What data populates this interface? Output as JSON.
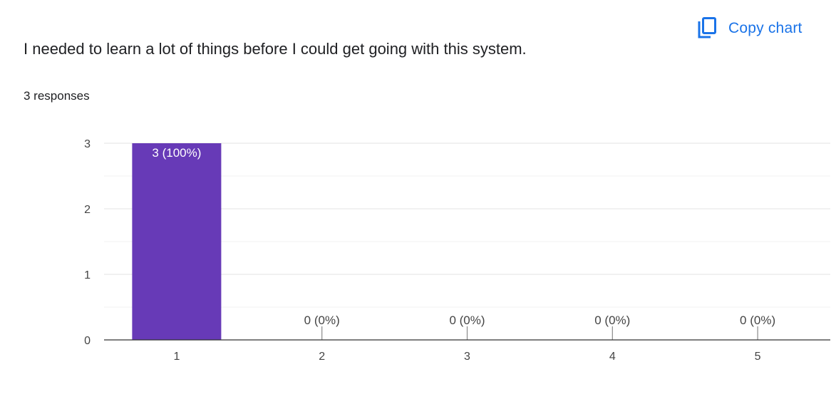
{
  "header": {
    "copy_label": "Copy chart",
    "copy_icon": "copy-icon",
    "question": "I needed to learn a lot of things before I could get going with this system.",
    "responses": "3 responses"
  },
  "colors": {
    "accent": "#1a73e8",
    "bar": "#673ab7",
    "grid": "#e8e8e8",
    "axis": "#333333"
  },
  "chart_data": {
    "type": "bar",
    "categories": [
      "1",
      "2",
      "3",
      "4",
      "5"
    ],
    "values": [
      3,
      0,
      0,
      0,
      0
    ],
    "data_labels": [
      "3 (100%)",
      "0 (0%)",
      "0 (0%)",
      "0 (0%)",
      "0 (0%)"
    ],
    "ylim": [
      0,
      3
    ],
    "yticks": [
      0,
      1,
      2,
      3
    ],
    "grid": true,
    "legend": "none",
    "title": "I needed to learn a lot of things before I could get going with this system.",
    "xlabel": "",
    "ylabel": ""
  }
}
